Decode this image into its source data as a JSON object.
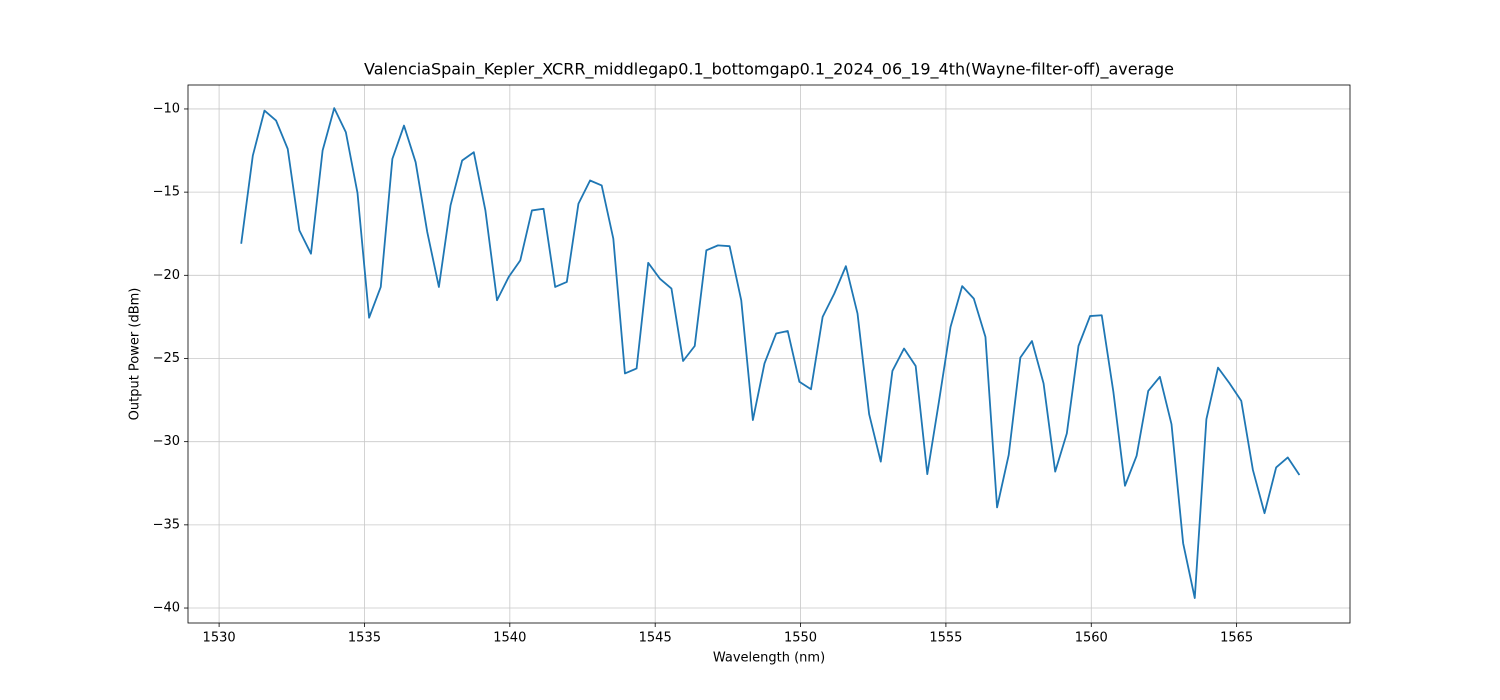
{
  "chart_data": {
    "type": "line",
    "title": "ValenciaSpain_Kepler_XCRR_middlegap0.1_bottomgap0.1_2024_06_19_4th(Wayne-filter-off)_average",
    "x_label": "Wavelength (nm)",
    "y_label": "Output Power (dBm)",
    "x": [
      1530.76,
      1531.16,
      1531.56,
      1531.96,
      1532.36,
      1532.76,
      1533.16,
      1533.56,
      1533.96,
      1534.36,
      1534.76,
      1535.16,
      1535.56,
      1535.96,
      1536.36,
      1536.76,
      1537.16,
      1537.56,
      1537.96,
      1538.36,
      1538.76,
      1539.16,
      1539.56,
      1539.96,
      1540.36,
      1540.76,
      1541.16,
      1541.56,
      1541.96,
      1542.36,
      1542.76,
      1543.16,
      1543.56,
      1543.96,
      1544.36,
      1544.76,
      1545.16,
      1545.56,
      1545.96,
      1546.36,
      1546.76,
      1547.16,
      1547.56,
      1547.96,
      1548.36,
      1548.76,
      1549.16,
      1549.56,
      1549.96,
      1550.36,
      1550.76,
      1551.16,
      1551.56,
      1551.96,
      1552.36,
      1552.76,
      1553.16,
      1553.56,
      1553.96,
      1554.36,
      1554.76,
      1555.16,
      1555.56,
      1555.96,
      1556.36,
      1556.76,
      1557.16,
      1557.56,
      1557.96,
      1558.36,
      1558.76,
      1559.16,
      1559.56,
      1559.96,
      1560.36,
      1560.76,
      1561.16,
      1561.56,
      1561.96,
      1562.36,
      1562.76,
      1563.16,
      1563.56,
      1563.96,
      1564.36,
      1564.76,
      1565.16,
      1565.56,
      1565.96,
      1566.36,
      1566.76,
      1567.16
    ],
    "series": [
      {
        "color": "#1f77b4",
        "values": [
          -18.1,
          -12.8,
          -10.1,
          -10.7,
          -12.4,
          -17.3,
          -18.7,
          -12.5,
          -9.95,
          -11.4,
          -15.05,
          -22.55,
          -20.7,
          -13.0,
          -11.0,
          -13.2,
          -17.4,
          -20.7,
          -15.8,
          -13.1,
          -12.6,
          -16.1,
          -21.5,
          -20.1,
          -19.1,
          -16.1,
          -16.0,
          -20.7,
          -20.4,
          -15.7,
          -14.3,
          -14.6,
          -17.8,
          -25.9,
          -25.6,
          -19.25,
          -20.2,
          -20.8,
          -25.15,
          -24.25,
          -18.5,
          -18.2,
          -18.25,
          -21.5,
          -28.7,
          -25.3,
          -23.5,
          -23.35,
          -26.4,
          -26.85,
          -22.5,
          -21.1,
          -19.45,
          -22.3,
          -28.35,
          -31.2,
          -25.75,
          -24.4,
          -25.45,
          -31.95,
          -27.6,
          -23.1,
          -20.65,
          -21.4,
          -23.7,
          -33.95,
          -30.8,
          -24.95,
          -23.95,
          -26.5,
          -31.8,
          -29.5,
          -24.25,
          -22.45,
          -22.4,
          -27.0,
          -32.65,
          -30.85,
          -26.95,
          -26.1,
          -28.95,
          -36.1,
          -39.4,
          -28.65,
          -25.55,
          -26.5,
          -27.55,
          -31.7,
          -34.3,
          -31.55,
          -30.95,
          -32.0
        ]
      }
    ],
    "xlim": [
      1528.93,
      1568.9
    ],
    "ylim": [
      -40.9,
      -8.56
    ],
    "xticks": [
      1530,
      1535,
      1540,
      1545,
      1550,
      1555,
      1560,
      1565
    ],
    "yticks": [
      {
        "value": -40,
        "label": "−40"
      },
      {
        "value": -35,
        "label": "−35"
      },
      {
        "value": -30,
        "label": "−30"
      },
      {
        "value": -25,
        "label": "−25"
      },
      {
        "value": -20,
        "label": "−20"
      },
      {
        "value": -15,
        "label": "−15"
      },
      {
        "value": -10,
        "label": "−10"
      }
    ],
    "grid": true
  }
}
